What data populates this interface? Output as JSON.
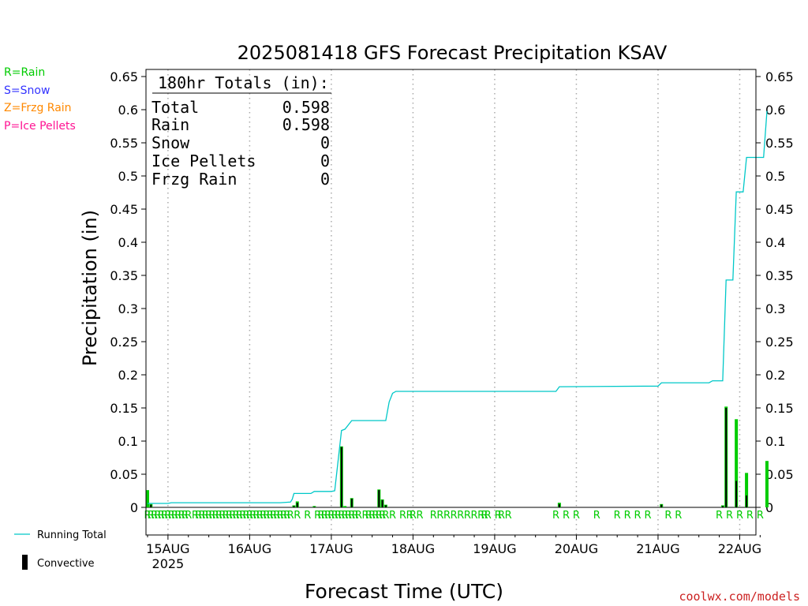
{
  "chart_data": {
    "type": "bar",
    "title": "2025081418 GFS Forecast Precipitation KSAV",
    "xlabel": "Forecast Time (UTC)",
    "ylabel": "Precipitation (in)",
    "ylim": [
      0,
      0.65
    ],
    "y_ticks": [
      "0",
      "0.05",
      "0.1",
      "0.15",
      "0.2",
      "0.25",
      "0.3",
      "0.35",
      "0.4",
      "0.45",
      "0.5",
      "0.55",
      "0.6",
      "0.65"
    ],
    "y_tick_values": [
      0,
      0.05,
      0.1,
      0.15,
      0.2,
      0.25,
      0.3,
      0.35,
      0.4,
      0.45,
      0.5,
      0.55,
      0.6,
      0.65
    ],
    "x_range_hours": [
      -6,
      180
    ],
    "x_ticks": [
      "15AUG",
      "16AUG",
      "17AUG",
      "18AUG",
      "19AUG",
      "20AUG",
      "21AUG",
      "22AUG"
    ],
    "x_tick_hours": [
      6,
      30,
      54,
      78,
      102,
      126,
      150,
      174
    ],
    "x_year_label": "2025",
    "grid": "vertical dotted at 00Z",
    "legend_top_left": [
      {
        "text": "R=Rain",
        "color": "#00cc00"
      },
      {
        "text": "S=Snow",
        "color": "#3333ff"
      },
      {
        "text": "Z=Frzg Rain",
        "color": "#ff8800"
      },
      {
        "text": "P=Ice Pellets",
        "color": "#ff1493"
      }
    ],
    "legend_bottom_left": {
      "running_total": "Running Total",
      "convective": "Convective"
    },
    "totals_box": {
      "header": "180hr Totals (in):",
      "rows": [
        {
          "label": "Total",
          "value": "0.598"
        },
        {
          "label": "Rain",
          "value": "0.598"
        },
        {
          "label": "Snow",
          "value": "0"
        },
        {
          "label": "Ice Pellets",
          "value": "0"
        },
        {
          "label": "Frzg Rain",
          "value": "0"
        }
      ]
    },
    "credit": "coolwx.com/models",
    "series": [
      {
        "name": "Running Total",
        "color": "#00c8c8",
        "points": [
          [
            0,
            0.006
          ],
          [
            6,
            0.006
          ],
          [
            7,
            0.007
          ],
          [
            39,
            0.007
          ],
          [
            42,
            0.008
          ],
          [
            42.5,
            0.012
          ],
          [
            43,
            0.021
          ],
          [
            48,
            0.021
          ],
          [
            49,
            0.024
          ],
          [
            54,
            0.024
          ],
          [
            55,
            0.025
          ],
          [
            57,
            0.116
          ],
          [
            58,
            0.118
          ],
          [
            60,
            0.131
          ],
          [
            70,
            0.131
          ],
          [
            71,
            0.159
          ],
          [
            72,
            0.172
          ],
          [
            73,
            0.175
          ],
          [
            120,
            0.175
          ],
          [
            121,
            0.182
          ],
          [
            150,
            0.183
          ],
          [
            151,
            0.188
          ],
          [
            165,
            0.188
          ],
          [
            166,
            0.191
          ],
          [
            169,
            0.191
          ],
          [
            170,
            0.343
          ],
          [
            172,
            0.343
          ],
          [
            173,
            0.476
          ],
          [
            175,
            0.476
          ],
          [
            176,
            0.528
          ],
          [
            181,
            0.528
          ],
          [
            182,
            0.598
          ]
        ]
      },
      {
        "name": "Rain",
        "color": "#00cc00",
        "bars": [
          [
            0,
            0.026
          ],
          [
            1,
            0.005
          ],
          [
            43,
            0.003
          ],
          [
            44,
            0.009
          ],
          [
            49,
            0.002
          ],
          [
            57,
            0.092
          ],
          [
            58,
            0.002
          ],
          [
            60,
            0.014
          ],
          [
            68,
            0.027
          ],
          [
            69,
            0.012
          ],
          [
            70,
            0.004
          ],
          [
            121,
            0.007
          ],
          [
            151,
            0.005
          ],
          [
            169,
            0.003
          ],
          [
            170,
            0.152
          ],
          [
            173,
            0.133
          ],
          [
            176,
            0.052
          ],
          [
            182,
            0.07
          ]
        ]
      },
      {
        "name": "Convective",
        "color": "#000000",
        "bars": [
          [
            0,
            0.0
          ],
          [
            1,
            0.004
          ],
          [
            43,
            0.002
          ],
          [
            44,
            0.007
          ],
          [
            49,
            0.001
          ],
          [
            57,
            0.091
          ],
          [
            60,
            0.013
          ],
          [
            68,
            0.026
          ],
          [
            69,
            0.011
          ],
          [
            70,
            0.003
          ],
          [
            121,
            0.005
          ],
          [
            151,
            0.004
          ],
          [
            169,
            0.002
          ],
          [
            170,
            0.15
          ],
          [
            173,
            0.04
          ],
          [
            176,
            0.018
          ],
          [
            182,
            0.0
          ]
        ]
      }
    ],
    "ptype_marker": "R",
    "ptype_marker_hours": [
      0,
      1,
      2,
      3,
      4,
      5,
      6,
      7,
      8,
      9,
      10,
      11,
      12,
      14,
      15,
      16,
      17,
      18,
      19,
      20,
      21,
      22,
      23,
      24,
      25,
      26,
      27,
      28,
      29,
      30,
      31,
      32,
      33,
      34,
      35,
      36,
      37,
      38,
      39,
      40,
      41,
      42,
      44,
      47,
      50,
      51,
      52,
      53,
      54,
      55,
      56,
      57,
      58,
      59,
      60,
      61,
      62,
      64,
      65,
      66,
      67,
      68,
      69,
      70,
      72,
      75,
      77,
      78,
      80,
      84,
      86,
      88,
      90,
      92,
      94,
      96,
      98,
      99,
      100,
      103,
      104,
      106,
      120,
      123,
      126,
      132,
      138,
      141,
      144,
      147,
      153,
      156,
      168,
      171,
      174,
      177,
      180
    ]
  }
}
